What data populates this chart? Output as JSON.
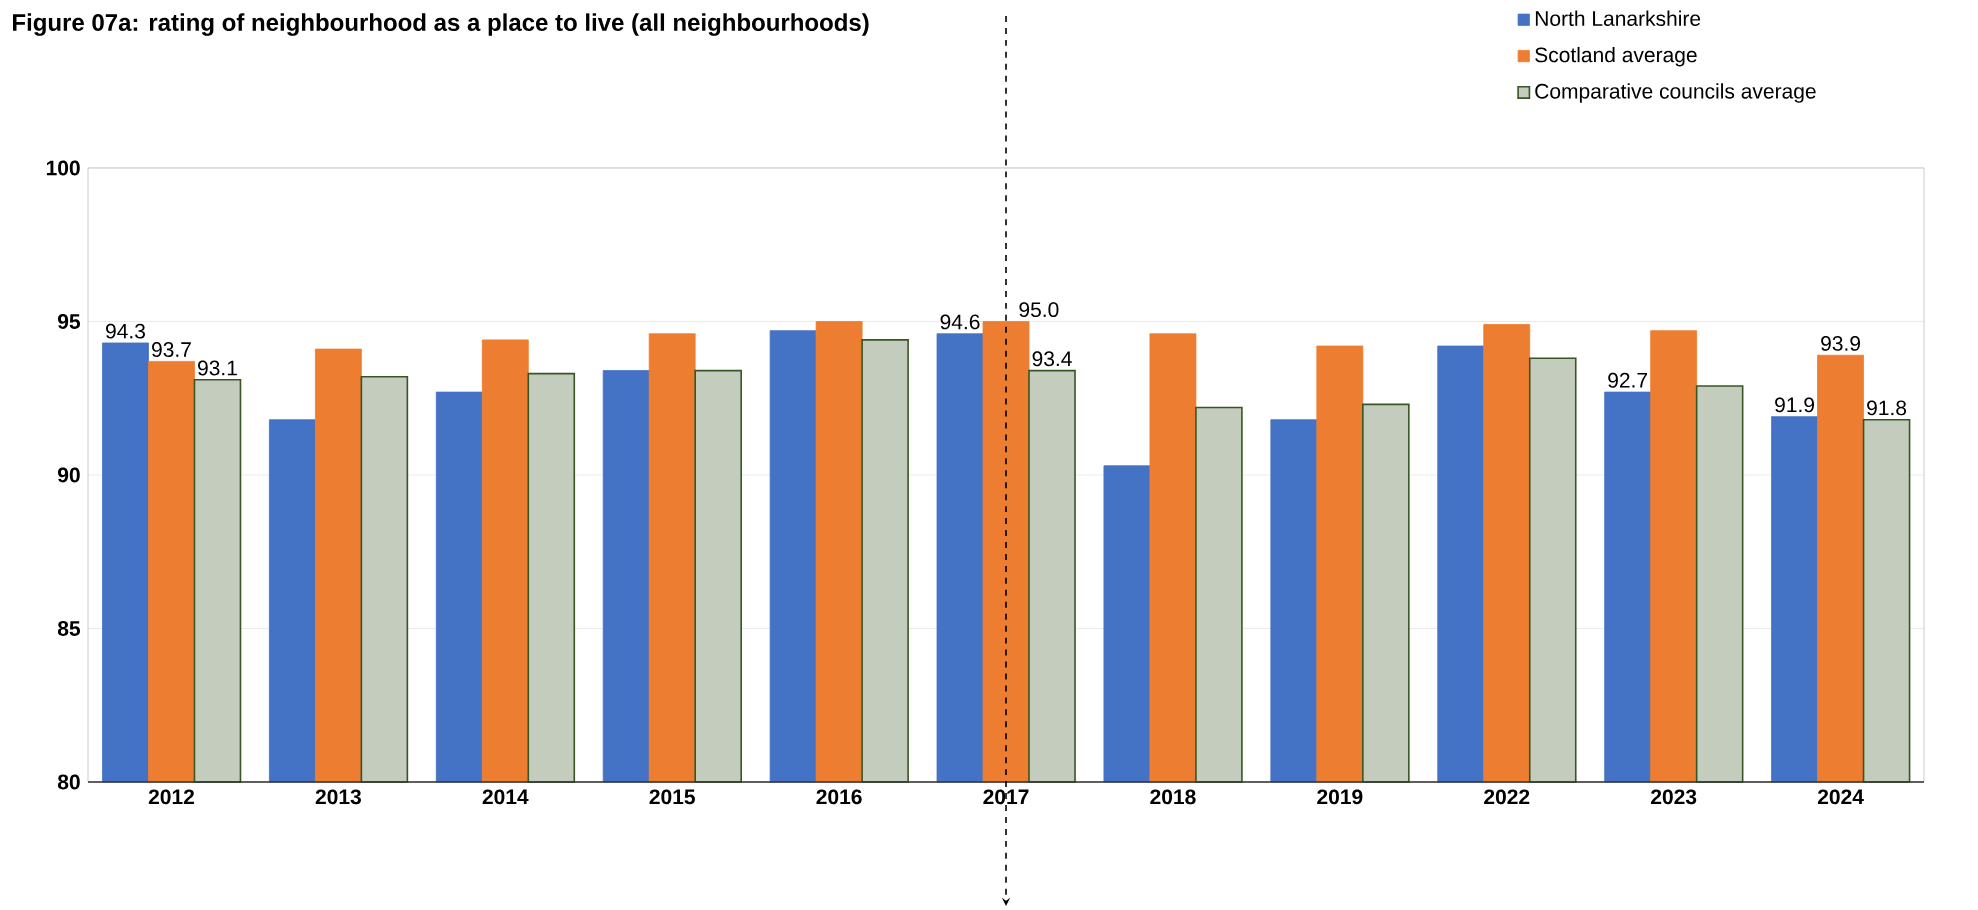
{
  "chart_data": {
    "type": "bar",
    "title": "Figure 07a: rating of neighbourhood as a place to live (all neighbourhoods)",
    "categories": [
      "2012",
      "2013",
      "2014",
      "2015",
      "2016",
      "2017",
      "2018",
      "2019",
      "2022",
      "2023",
      "2024"
    ],
    "series": [
      {
        "name": "North Lanarkshire",
        "color": "#4472c4",
        "values": [
          94.3,
          91.8,
          92.7,
          93.4,
          94.7,
          94.6,
          90.3,
          91.8,
          94.2,
          92.7,
          91.9
        ],
        "value_labels": [
          "94.3",
          null,
          null,
          null,
          null,
          "94.6",
          null,
          null,
          null,
          "92.7",
          "91.9"
        ]
      },
      {
        "name": "Scotland average",
        "color": "#ed7d31",
        "values": [
          93.7,
          94.1,
          94.4,
          94.6,
          95.0,
          95.0,
          94.6,
          94.2,
          94.9,
          94.7,
          93.9
        ],
        "value_labels": [
          "93.7",
          null,
          null,
          null,
          null,
          "95.0",
          null,
          null,
          null,
          null,
          "93.9"
        ]
      },
      {
        "name": "Comparative councils average",
        "color": "#375623",
        "values": [
          93.1,
          93.2,
          93.3,
          93.4,
          94.4,
          93.4,
          92.2,
          92.3,
          93.8,
          92.9,
          91.8
        ],
        "value_labels": [
          "93.1",
          null,
          null,
          null,
          null,
          "93.4",
          null,
          null,
          null,
          null,
          "91.8"
        ]
      }
    ],
    "ylim": [
      80,
      100
    ],
    "yticks": [
      80,
      85,
      90,
      95,
      100
    ],
    "grid": "y",
    "legend": "top right",
    "ref_lines": [
      {
        "axis": "x",
        "value": "2017",
        "line_style": "dashed"
      }
    ]
  }
}
